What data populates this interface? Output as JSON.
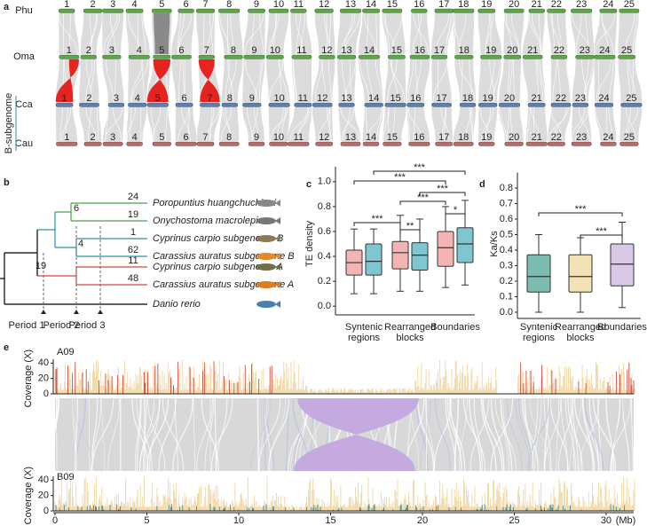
{
  "panel_a": {
    "label": "a",
    "genomes": [
      "Phu",
      "Oma",
      "Cca",
      "Cau"
    ],
    "subgenome_label": "B-subgenome",
    "chromosomes": [
      "1",
      "2",
      "3",
      "4",
      "5",
      "6",
      "7",
      "8",
      "9",
      "10",
      "11",
      "12",
      "13",
      "14",
      "15",
      "16",
      "17",
      "18",
      "19",
      "20",
      "21",
      "22",
      "23",
      "24",
      "25"
    ]
  },
  "panel_b": {
    "label": "b",
    "species": [
      {
        "name": "Poropuntius huangchuchieni",
        "count": 24
      },
      {
        "name": "Onychostoma macrolepis",
        "count": 19
      },
      {
        "name": "Cyprinus carpio subgenome B",
        "count": 1
      },
      {
        "name": "Carassius auratus subgenome B",
        "count": 62
      },
      {
        "name": "Cyprinus carpio subgenome A",
        "count": 11
      },
      {
        "name": "Carassius auratus subgenome A",
        "count": 48
      },
      {
        "name": "Danio rerio"
      }
    ],
    "node_labels": [
      6,
      4,
      19
    ],
    "periods": [
      "Period 1",
      "Period 2",
      "Period 3"
    ]
  },
  "chart_data": [
    {
      "type": "box",
      "label": "c",
      "ylabel": "TE density",
      "categories": [
        "Syntenic regions",
        "Rearranged blocks",
        "Boundaries"
      ],
      "ylim": [
        -0.07,
        1.12
      ],
      "yticks": [
        {
          "value": 0,
          "label": "0.0"
        },
        0.2,
        0.4,
        0.6,
        0.8,
        {
          "value": 1,
          "label": "1.0"
        }
      ],
      "series": [
        {
          "color": "#f4b4b4",
          "values": [
            {
              "whislo": 0.1,
              "q1": 0.25,
              "med": 0.35,
              "q3": 0.45,
              "whishi": 0.62
            },
            {
              "whislo": 0.12,
              "q1": 0.3,
              "med": 0.43,
              "q3": 0.52,
              "whishi": 0.73
            },
            {
              "whislo": 0.15,
              "q1": 0.32,
              "med": 0.47,
              "q3": 0.6,
              "whishi": 0.8
            }
          ]
        },
        {
          "color": "#7ec7d0",
          "values": [
            {
              "whislo": 0.1,
              "q1": 0.25,
              "med": 0.36,
              "q3": 0.5,
              "whishi": 0.62
            },
            {
              "whislo": 0.12,
              "q1": 0.29,
              "med": 0.41,
              "q3": 0.51,
              "whishi": 0.7
            },
            {
              "whislo": 0.17,
              "q1": 0.35,
              "med": 0.5,
              "q3": 0.63,
              "whishi": 0.85
            }
          ]
        }
      ],
      "significance": [
        "***",
        "***",
        "***",
        "***",
        "*",
        "***",
        "**"
      ]
    },
    {
      "type": "box",
      "label": "d",
      "ylabel": "Ka/Ks",
      "categories": [
        "Syntenic regions",
        "Rearranged blocks",
        "Boundaries"
      ],
      "ylim": [
        -0.04,
        0.9
      ],
      "yticks": [
        {
          "value": 0,
          "label": "0.0"
        },
        0.1,
        0.2,
        0.3,
        0.4,
        0.5,
        0.6,
        0.7,
        0.8
      ],
      "colors": [
        "#7dbdaf",
        "#f2e3b6",
        "#d9c8e6"
      ],
      "values": [
        {
          "whislo": 0.0,
          "q1": 0.13,
          "med": 0.23,
          "q3": 0.37,
          "whishi": 0.5
        },
        {
          "whislo": 0.0,
          "q1": 0.13,
          "med": 0.23,
          "q3": 0.37,
          "whishi": 0.48
        },
        {
          "whislo": 0.03,
          "q1": 0.17,
          "med": 0.31,
          "q3": 0.44,
          "whishi": 0.58
        }
      ],
      "significance": [
        "***",
        "***"
      ]
    }
  ],
  "panel_e": {
    "label": "e",
    "ylabel": "Coverage (X)",
    "tracks": [
      "A09",
      "B09"
    ],
    "ylim": [
      0,
      45
    ],
    "yticks": [
      0,
      20,
      40
    ],
    "xlim": [
      0,
      31.5
    ],
    "xticks": [
      0,
      5,
      10,
      15,
      20,
      25,
      30
    ],
    "xunit": "(Mb)"
  }
}
